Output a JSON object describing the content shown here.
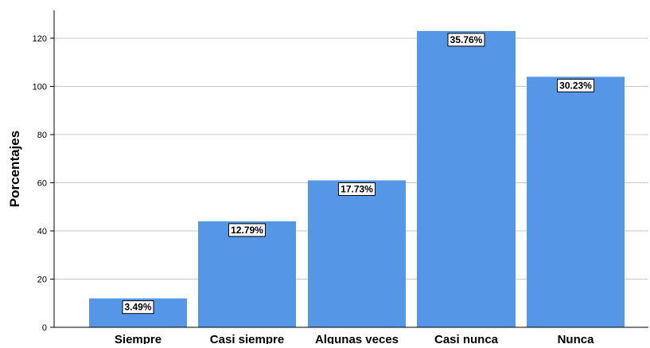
{
  "colors": {
    "bar": "#5596e6",
    "gridline": "#c8c8c8",
    "axis": "#000000",
    "label_box": "#ffffff"
  },
  "chart_data": {
    "type": "bar",
    "title": "",
    "xlabel": "",
    "ylabel": "Porcentajes",
    "categories": [
      "Siempre",
      "Casi siempre",
      "Algunas veces",
      "Casi nunca",
      "Nunca"
    ],
    "values": [
      12,
      44,
      61,
      123,
      104
    ],
    "data_labels": [
      "3.49%",
      "12.79%",
      "17.73%",
      "35.76%",
      "30.23%"
    ],
    "yticks": [
      0,
      20,
      40,
      60,
      80,
      100,
      120
    ],
    "ylim": [
      0,
      125
    ],
    "grid": true,
    "legend": "none"
  }
}
